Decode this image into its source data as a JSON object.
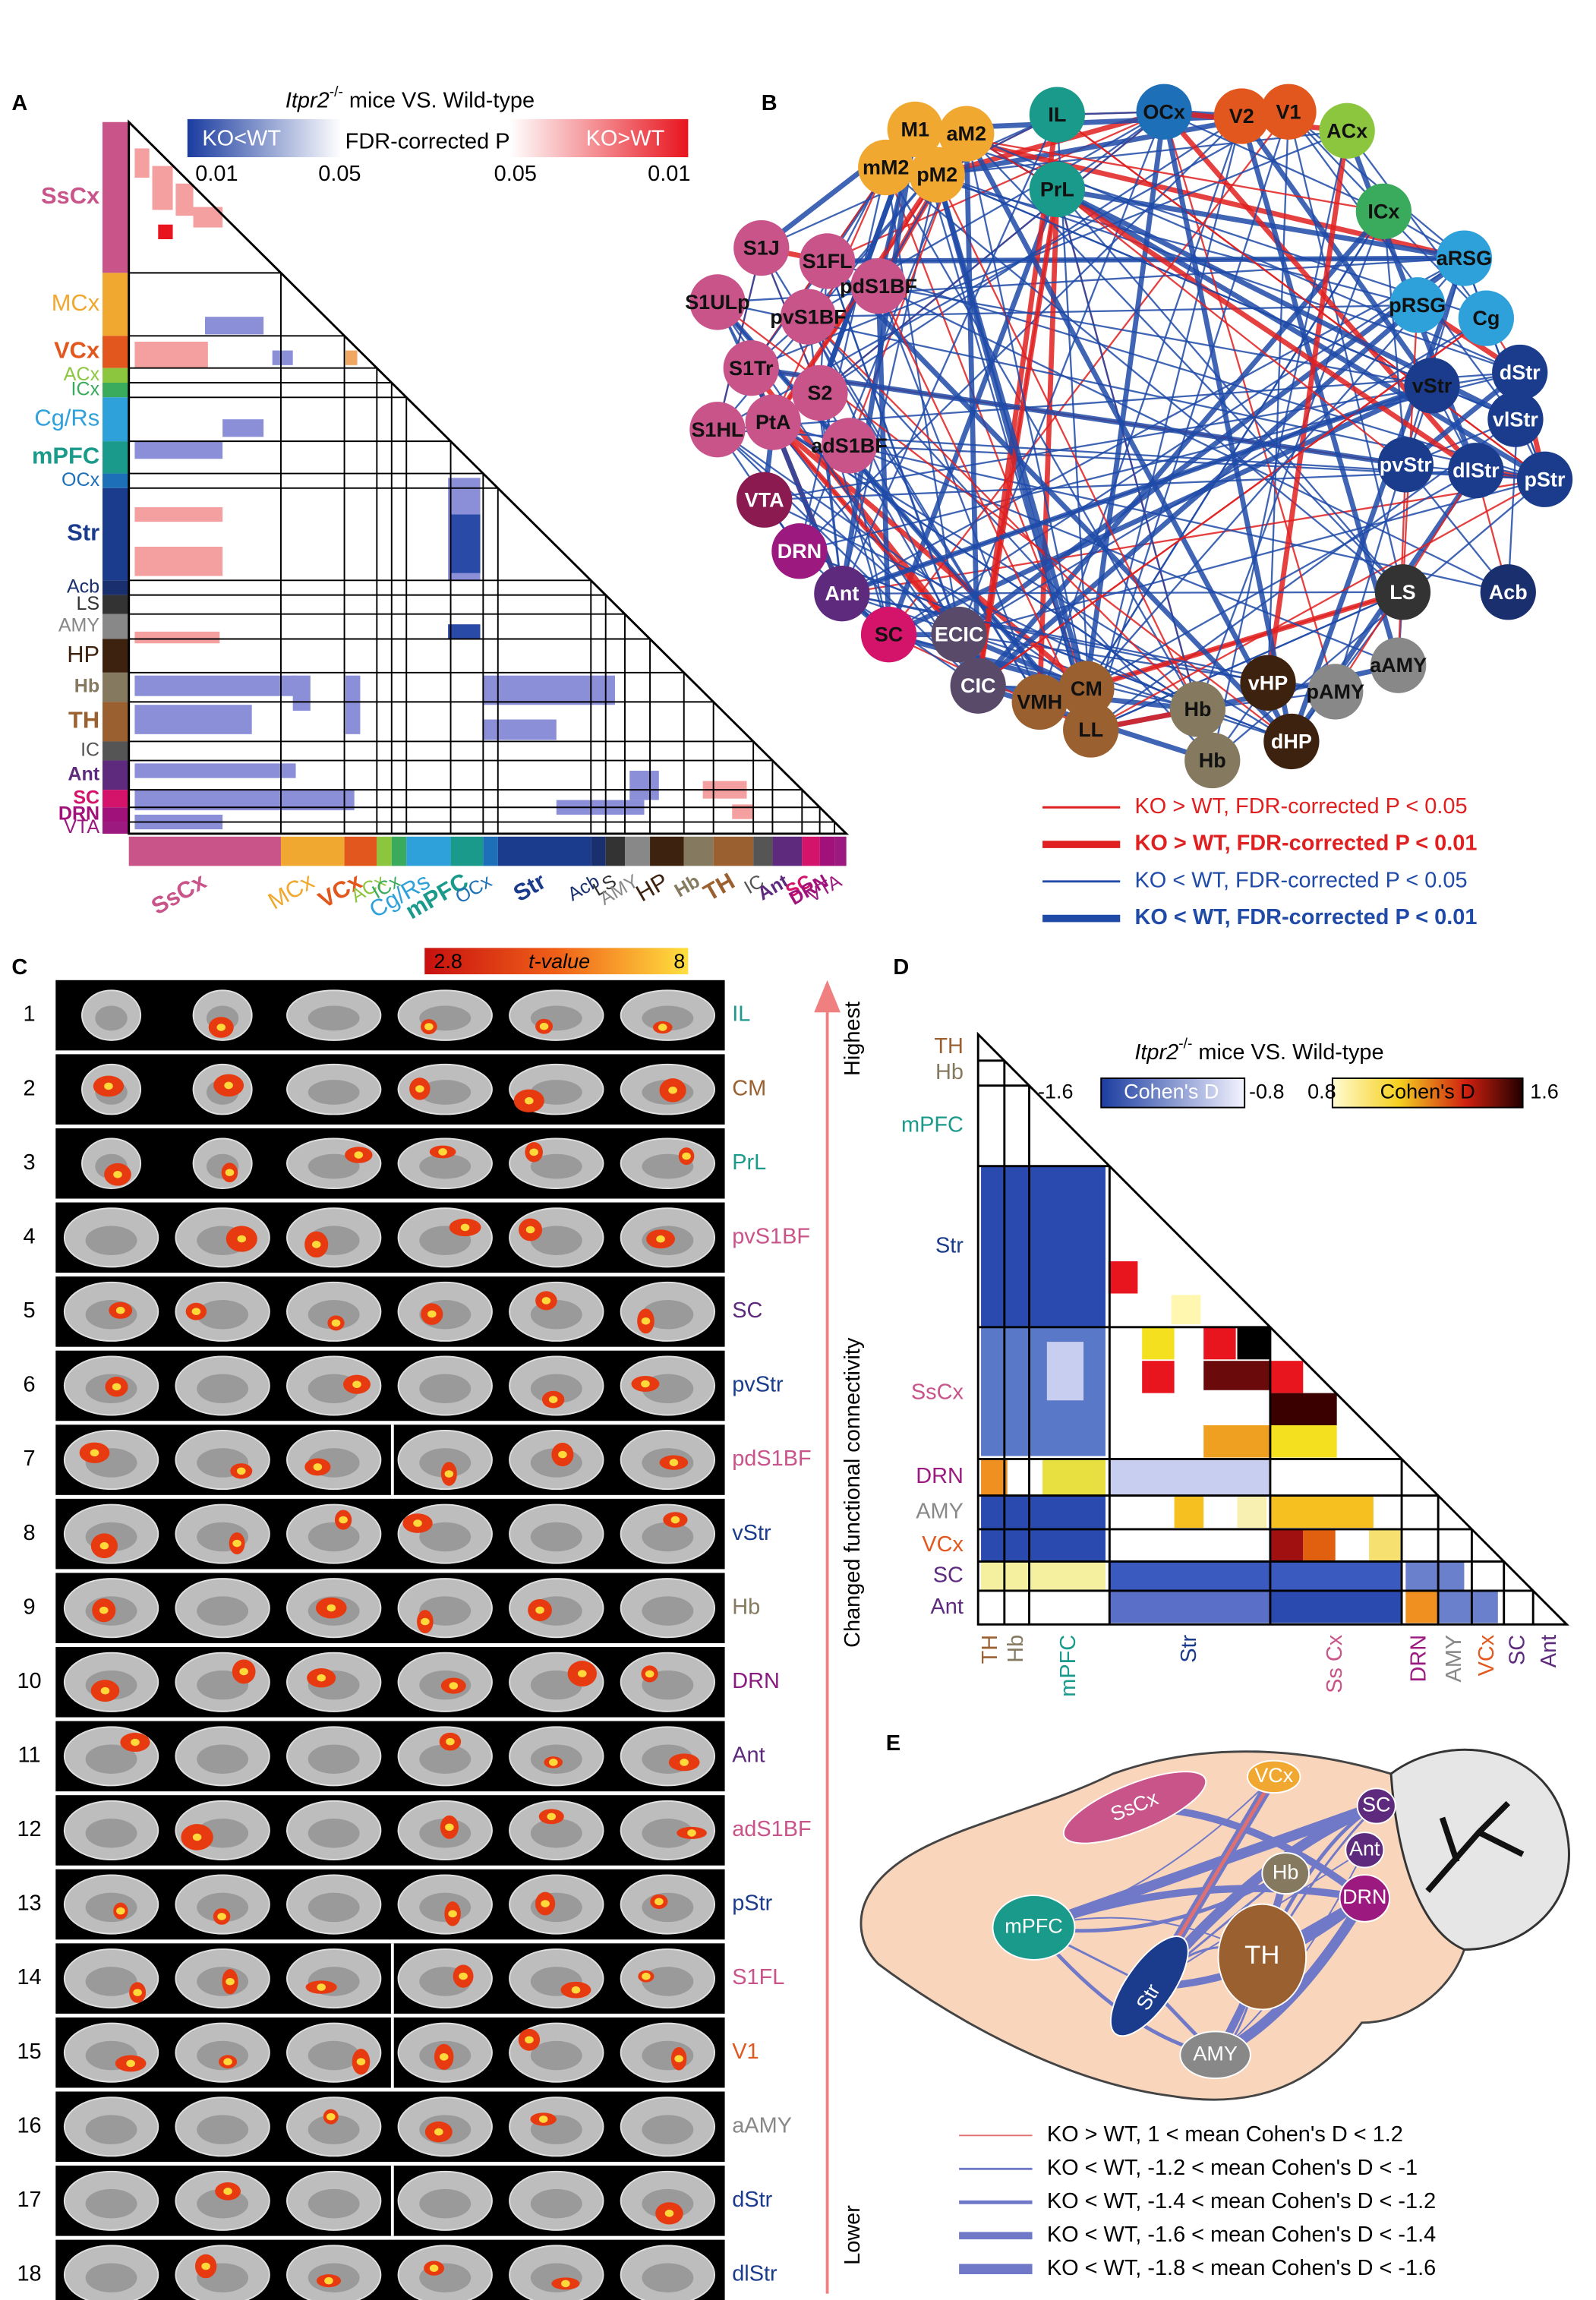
{
  "panels": [
    "A",
    "B",
    "C",
    "D",
    "E"
  ],
  "panel_a": {
    "title_gene": "Itpr2",
    "title_sup": "-/-",
    "title_rest": " mice VS. Wild-type",
    "legend_low": "KO<WT",
    "legend_mid": "FDR-corrected P",
    "legend_high": "KO>WT",
    "legend_ticks": [
      "0.01",
      "0.05",
      "0.05",
      "0.01"
    ],
    "regions": [
      {
        "label": "SsCx",
        "color": "#c9548a"
      },
      {
        "label": "MCx",
        "color": "#f0a830"
      },
      {
        "label": "VCx",
        "color": "#e2571e"
      },
      {
        "label": "ACx",
        "color": "#8cc63f"
      },
      {
        "label": "ICx",
        "color": "#3aaa5c"
      },
      {
        "label": "Cg/Rs",
        "color": "#2ea0da"
      },
      {
        "label": "mPFC",
        "color": "#1a9a8a"
      },
      {
        "label": "OCx",
        "color": "#1d6fb8"
      },
      {
        "label": "Str",
        "color": "#1b3c8c"
      },
      {
        "label": "Acb",
        "color": "#1a2f6e"
      },
      {
        "label": "LS",
        "color": "#333333"
      },
      {
        "label": "AMY",
        "color": "#888888"
      },
      {
        "label": "HP",
        "color": "#3d2210"
      },
      {
        "label": "Hb",
        "color": "#857a60"
      },
      {
        "label": "TH",
        "color": "#9a6030"
      },
      {
        "label": "IC",
        "color": "#555555"
      },
      {
        "label": "Ant",
        "color": "#5e2a7e"
      },
      {
        "label": "SC",
        "color": "#d4146a"
      },
      {
        "label": "DRN",
        "color": "#a0127a"
      },
      {
        "label": "VTA",
        "color": "#9c1a80"
      }
    ]
  },
  "panel_b": {
    "nodes": [
      {
        "label": "M1",
        "color": "#f0a830"
      },
      {
        "label": "aM2",
        "color": "#f0a830"
      },
      {
        "label": "mM2",
        "color": "#f0a830"
      },
      {
        "label": "pM2",
        "color": "#f0a830"
      },
      {
        "label": "IL",
        "color": "#1a9a8a"
      },
      {
        "label": "OCx",
        "color": "#1d6fb8"
      },
      {
        "label": "V2",
        "color": "#e2571e"
      },
      {
        "label": "V1",
        "color": "#e2571e"
      },
      {
        "label": "ACx",
        "color": "#8cc63f"
      },
      {
        "label": "PrL",
        "color": "#1a9a8a"
      },
      {
        "label": "ICx",
        "color": "#3aaa5c"
      },
      {
        "label": "aRSG",
        "color": "#2ea0da"
      },
      {
        "label": "pRSG",
        "color": "#2ea0da"
      },
      {
        "label": "Cg",
        "color": "#2ea0da"
      },
      {
        "label": "dStr",
        "color": "#1b3c8c"
      },
      {
        "label": "vStr",
        "color": "#1b3c8c"
      },
      {
        "label": "vlStr",
        "color": "#1b3c8c"
      },
      {
        "label": "pvStr",
        "color": "#1b3c8c"
      },
      {
        "label": "dlStr",
        "color": "#1b3c8c"
      },
      {
        "label": "pStr",
        "color": "#1b3c8c"
      },
      {
        "label": "LS",
        "color": "#333333"
      },
      {
        "label": "Acb",
        "color": "#1a2f6e"
      },
      {
        "label": "aAMY",
        "color": "#888888"
      },
      {
        "label": "pAMY",
        "color": "#888888"
      },
      {
        "label": "vHP",
        "color": "#3d2210"
      },
      {
        "label": "dHP",
        "color": "#3d2210"
      },
      {
        "label": "Hb",
        "color": "#857a60"
      },
      {
        "label": "Hb",
        "color": "#857a60"
      },
      {
        "label": "CM",
        "color": "#9a6030"
      },
      {
        "label": "LL",
        "color": "#9a6030"
      },
      {
        "label": "VMH",
        "color": "#9a6030"
      },
      {
        "label": "CIC",
        "color": "#5a4a6a"
      },
      {
        "label": "ECIC",
        "color": "#5a4a6a"
      },
      {
        "label": "SC",
        "color": "#d4146a"
      },
      {
        "label": "Ant",
        "color": "#5e2a7e"
      },
      {
        "label": "DRN",
        "color": "#9c1a80"
      },
      {
        "label": "VTA",
        "color": "#8a1a50"
      },
      {
        "label": "S1J",
        "color": "#c9548a"
      },
      {
        "label": "S1FL",
        "color": "#c9548a"
      },
      {
        "label": "pdS1BF",
        "color": "#c9548a"
      },
      {
        "label": "S1ULp",
        "color": "#c9548a"
      },
      {
        "label": "pvS1BF",
        "color": "#c9548a"
      },
      {
        "label": "S1Tr",
        "color": "#c9548a"
      },
      {
        "label": "S2",
        "color": "#c9548a"
      },
      {
        "label": "PtA",
        "color": "#c9548a"
      },
      {
        "label": "S1HL",
        "color": "#c9548a"
      },
      {
        "label": "adS1BF",
        "color": "#c9548a"
      }
    ],
    "legend": [
      "KO > WT, FDR-corrected P < 0.05",
      "KO > WT, FDR-corrected P < 0.01",
      "KO < WT, FDR-corrected P < 0.05",
      "KO < WT, FDR-corrected P < 0.01"
    ]
  },
  "panel_c": {
    "colorbar_min": "2.8",
    "colorbar_title": "t-value",
    "colorbar_max": "8",
    "axis_top": "Highest",
    "axis_bottom": "Lower",
    "axis_title": "Changed functional connectivity",
    "rows": [
      {
        "number": 1,
        "label": "IL",
        "color": "#1a9a8a"
      },
      {
        "number": 2,
        "label": "CM",
        "color": "#9a6030"
      },
      {
        "number": 3,
        "label": "PrL",
        "color": "#1a9a8a"
      },
      {
        "number": 4,
        "label": "pvS1BF",
        "color": "#c9548a"
      },
      {
        "number": 5,
        "label": "SC",
        "color": "#5e2a7e"
      },
      {
        "number": 6,
        "label": "pvStr",
        "color": "#1b3c8c"
      },
      {
        "number": 7,
        "label": "pdS1BF",
        "color": "#c9548a"
      },
      {
        "number": 8,
        "label": "vStr",
        "color": "#1b3c8c"
      },
      {
        "number": 9,
        "label": "Hb",
        "color": "#857a60"
      },
      {
        "number": 10,
        "label": "DRN",
        "color": "#8a1a80"
      },
      {
        "number": 11,
        "label": "Ant",
        "color": "#5e2a7e"
      },
      {
        "number": 12,
        "label": "adS1BF",
        "color": "#c9548a"
      },
      {
        "number": 13,
        "label": "pStr",
        "color": "#1b3c8c"
      },
      {
        "number": 14,
        "label": "S1FL",
        "color": "#c9548a"
      },
      {
        "number": 15,
        "label": "V1",
        "color": "#e2571e"
      },
      {
        "number": 16,
        "label": "aAMY",
        "color": "#888888"
      },
      {
        "number": 17,
        "label": "dStr",
        "color": "#1b3c8c"
      },
      {
        "number": 18,
        "label": "dlStr",
        "color": "#1b3c8c"
      }
    ]
  },
  "panel_d": {
    "title_gene": "Itpr2",
    "title_sup": "-/-",
    "title_rest": " mice VS. Wild-type",
    "legend": [
      "-1.6",
      "Cohen's D",
      "-0.8",
      "0.8",
      "Cohen's D",
      "1.6"
    ],
    "rows": [
      {
        "label": "TH",
        "color": "#9a6030"
      },
      {
        "label": "Hb",
        "color": "#857a60"
      },
      {
        "label": "mPFC",
        "color": "#1a9a8a"
      },
      {
        "label": "Str",
        "color": "#1b3c8c"
      },
      {
        "label": "SsCx",
        "color": "#c9548a"
      },
      {
        "label": "DRN",
        "color": "#9c1a80"
      },
      {
        "label": "AMY",
        "color": "#888888"
      },
      {
        "label": "VCx",
        "color": "#e2571e"
      },
      {
        "label": "SC",
        "color": "#5e2a7e"
      },
      {
        "label": "Ant",
        "color": "#5e2a7e"
      }
    ],
    "columns": [
      "TH",
      "Hb",
      "mPFC",
      "Str",
      "Ss Cx",
      "DRN",
      "AMY",
      "VCx",
      "SC",
      "Ant"
    ]
  },
  "panel_e": {
    "nodes": [
      {
        "label": "SsCx",
        "color": "#c9548a"
      },
      {
        "label": "VCx",
        "color": "#f0a830"
      },
      {
        "label": "SC",
        "color": "#5e2a7e"
      },
      {
        "label": "Ant",
        "color": "#5e2a7e"
      },
      {
        "label": "DRN",
        "color": "#9c1a80"
      },
      {
        "label": "Hb",
        "color": "#857a60"
      },
      {
        "label": "TH",
        "color": "#9a6030"
      },
      {
        "label": "mPFC",
        "color": "#1a9a8a"
      },
      {
        "label": "Str",
        "color": "#1b3c8c"
      },
      {
        "label": "AMY",
        "color": "#888888"
      }
    ],
    "legend": [
      "KO > WT, 1 <  mean Cohen's D < 1.2",
      "KO < WT, -1.2 < mean Cohen's D < -1",
      "KO < WT, -1.4 < mean Cohen's D < -1.2",
      "KO < WT, -1.6 < mean Cohen's D < -1.4",
      "KO < WT, -1.8 < mean Cohen's D < -1.6"
    ]
  }
}
